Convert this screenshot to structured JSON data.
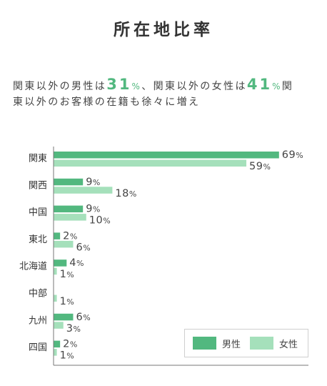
{
  "intro": {
    "line1": [
      "関東以外の男性は",
      "31",
      "%",
      "、関東以外の女性は",
      "41",
      "%",
      "関"
    ],
    "line2": [
      "東以外のお客様の在籍も徐々に増え"
    ]
  },
  "colors": {
    "text": "#333333",
    "accent": "#52b87f",
    "axis": "#777777"
  },
  "chart_data": {
    "type": "bar",
    "orientation": "horizontal",
    "title": "所在地比率",
    "categories": [
      "関東",
      "関西",
      "中国",
      "東北",
      "北海道",
      "中部",
      "九州",
      "四国"
    ],
    "series": [
      {
        "name": "男性",
        "values": [
          69,
          9,
          9,
          2,
          4,
          null,
          6,
          2
        ],
        "color": "#52b87f"
      },
      {
        "name": "女性",
        "values": [
          59,
          18,
          10,
          6,
          1,
          1,
          3,
          1
        ],
        "color": "#a5e0bb"
      }
    ],
    "value_suffix": "%",
    "xlim": [
      0,
      78
    ],
    "grid": false,
    "legend_position": "bottom-right"
  }
}
